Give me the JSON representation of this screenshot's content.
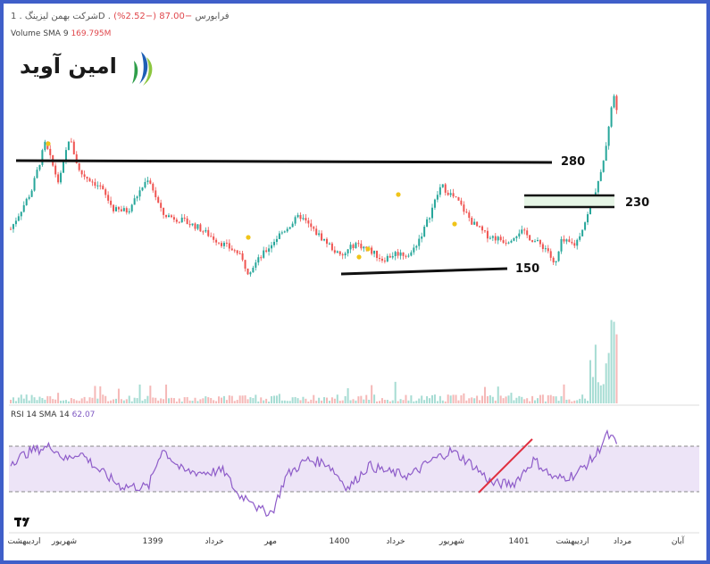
{
  "header": {
    "symbol_line": "شرکت بهمن لیزینگ . 1D . فرابورس",
    "change": "−87.00 (−2.52%)"
  },
  "volume": {
    "label": "Volume SMA 9",
    "value": "169.795M"
  },
  "rsi_label": {
    "label": "RSI 14 SMA 14",
    "value": "62.07"
  },
  "logo": {
    "text": "امین آوید"
  },
  "levels": {
    "l280": "280",
    "l230": "230",
    "l150": "150"
  },
  "colors": {
    "up": "#26a69a",
    "down": "#ef5350",
    "rsi": "#8e5cc9",
    "band": "#ede4f7",
    "zone": "#e6f5e6",
    "trend": "#e03040",
    "border": "#3f5fc9",
    "marker": "#f0c419"
  },
  "chart_data": {
    "type": "candlestick",
    "price_range": [
      120,
      390
    ],
    "levels": [
      {
        "name": "280",
        "value": 280
      },
      {
        "name": "230",
        "band": [
          222,
          233
        ]
      },
      {
        "name": "150",
        "value": 150
      }
    ],
    "x_axis_labels": [
      "اردیبهشت",
      "شهریور",
      "1399",
      "خرداد",
      "مهر",
      "1400",
      "خرداد",
      "شهریور",
      "1401",
      "اردیبهشت",
      "مرداد",
      "آبان"
    ],
    "price_path": [
      [
        0.0,
        197
      ],
      [
        0.03,
        243
      ],
      [
        0.05,
        301
      ],
      [
        0.07,
        252
      ],
      [
        0.085,
        309
      ],
      [
        0.1,
        266
      ],
      [
        0.13,
        248
      ],
      [
        0.15,
        220
      ],
      [
        0.17,
        219
      ],
      [
        0.2,
        260
      ],
      [
        0.22,
        215
      ],
      [
        0.24,
        210
      ],
      [
        0.27,
        200
      ],
      [
        0.3,
        183
      ],
      [
        0.33,
        168
      ],
      [
        0.345,
        145
      ],
      [
        0.36,
        160
      ],
      [
        0.39,
        190
      ],
      [
        0.42,
        213
      ],
      [
        0.44,
        195
      ],
      [
        0.46,
        180
      ],
      [
        0.48,
        162
      ],
      [
        0.5,
        180
      ],
      [
        0.52,
        172
      ],
      [
        0.54,
        160
      ],
      [
        0.56,
        168
      ],
      [
        0.58,
        165
      ],
      [
        0.6,
        196
      ],
      [
        0.625,
        250
      ],
      [
        0.65,
        230
      ],
      [
        0.67,
        205
      ],
      [
        0.69,
        190
      ],
      [
        0.72,
        182
      ],
      [
        0.74,
        195
      ],
      [
        0.76,
        183
      ],
      [
        0.78,
        172
      ],
      [
        0.79,
        150
      ],
      [
        0.8,
        182
      ],
      [
        0.82,
        178
      ],
      [
        0.84,
        218
      ],
      [
        0.86,
        272
      ],
      [
        0.875,
        362
      ],
      [
        0.88,
        340
      ]
    ],
    "rsi_path": [
      [
        0.0,
        56
      ],
      [
        0.03,
        66
      ],
      [
        0.06,
        70
      ],
      [
        0.08,
        58
      ],
      [
        0.1,
        65
      ],
      [
        0.13,
        48
      ],
      [
        0.16,
        35
      ],
      [
        0.2,
        34
      ],
      [
        0.22,
        68
      ],
      [
        0.25,
        48
      ],
      [
        0.28,
        47
      ],
      [
        0.31,
        48
      ],
      [
        0.33,
        27
      ],
      [
        0.35,
        24
      ],
      [
        0.36,
        14
      ],
      [
        0.38,
        12
      ],
      [
        0.4,
        44
      ],
      [
        0.43,
        58
      ],
      [
        0.46,
        55
      ],
      [
        0.49,
        33
      ],
      [
        0.52,
        53
      ],
      [
        0.55,
        47
      ],
      [
        0.58,
        44
      ],
      [
        0.61,
        57
      ],
      [
        0.64,
        66
      ],
      [
        0.67,
        54
      ],
      [
        0.7,
        37
      ],
      [
        0.73,
        37
      ],
      [
        0.76,
        58
      ],
      [
        0.79,
        41
      ],
      [
        0.82,
        45
      ],
      [
        0.85,
        62
      ],
      [
        0.865,
        80
      ],
      [
        0.875,
        76
      ],
      [
        0.88,
        70
      ]
    ],
    "rsi_range": [
      0,
      100
    ],
    "rsi_bands": [
      30,
      70
    ]
  }
}
